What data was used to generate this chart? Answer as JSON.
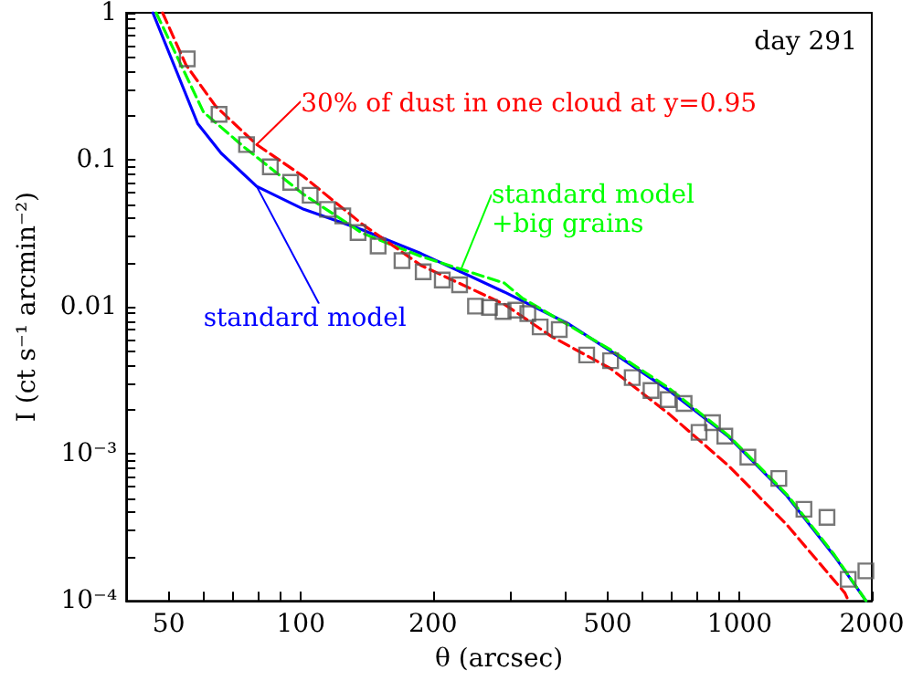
{
  "chart_data": {
    "type": "line",
    "xlabel": "θ (arcsec)",
    "ylabel": "I (ct s⁻¹ arcmin⁻²)",
    "log": "xy",
    "grid": false,
    "legend": false,
    "xlim": [
      40,
      2000
    ],
    "xticks": [
      50,
      100,
      200,
      500,
      1000,
      2000
    ],
    "ylim": [
      0.0001,
      1
    ],
    "yticks": [
      {
        "value": 0.0001,
        "label": "10⁻⁴"
      },
      {
        "value": 0.001,
        "label": "10⁻³"
      },
      0.01,
      0.1,
      1
    ],
    "annotations": [
      "day 291"
    ],
    "series": [
      {
        "type": "scatter",
        "marker": "square",
        "color": "#555555",
        "x": [
          55.1,
          65.1,
          75.2,
          85.2,
          94.8,
          105,
          115,
          124.6,
          135,
          150,
          170,
          190,
          210,
          230,
          250,
          269,
          289,
          309,
          329,
          351,
          388,
          448,
          508,
          569,
          628,
          687,
          747,
          808,
          867,
          925,
          1044,
          1228,
          1401,
          1581,
          1767,
          1939
        ],
        "values": [
          0.486,
          0.204,
          0.127,
          0.0895,
          0.0703,
          0.0574,
          0.046,
          0.0415,
          0.032,
          0.0259,
          0.0206,
          0.0173,
          0.0152,
          0.0141,
          0.0101,
          0.0099,
          0.0093,
          0.0095,
          0.009,
          0.0073,
          0.007,
          0.0047,
          0.0043,
          0.0033,
          0.0027,
          0.00234,
          0.0022,
          0.0014,
          0.00163,
          0.00132,
          0.00095,
          0.00068,
          0.00042,
          0.00037,
          0.00014,
          0.00016
        ]
      },
      {
        "name": "standard model",
        "color": "#0000ff",
        "line_style": "solid",
        "marker": "none",
        "x": [
          46,
          58.2,
          65.8,
          79.3,
          101.6,
          138,
          188,
          291,
          409,
          508,
          690,
          943,
          1280,
          1641,
          1940
        ],
        "values": [
          1,
          0.176,
          0.111,
          0.066,
          0.046,
          0.0334,
          0.023,
          0.0126,
          0.0076,
          0.005,
          0.0027,
          0.00131,
          0.00052,
          0.000203,
          0.0001
        ]
      },
      {
        "name": "standard model +big grains",
        "color": "#00ff00",
        "line_style": "dashed",
        "marker": "none",
        "x": [
          46.8,
          60,
          74.5,
          101.6,
          138,
          188,
          291,
          319,
          508,
          690,
          943,
          1280,
          1641,
          1940
        ],
        "values": [
          1,
          0.211,
          0.121,
          0.058,
          0.0317,
          0.022,
          0.0145,
          0.0115,
          0.0051,
          0.0028,
          0.00133,
          0.00053,
          0.000207,
          0.0001
        ]
      },
      {
        "name": "30% of dust in one cloud at y=0.95",
        "color": "#ff0000",
        "line_style": "dashed",
        "marker": "none",
        "x": [
          48.4,
          54.7,
          63.9,
          79.3,
          101.6,
          138,
          188,
          291,
          372,
          508,
          690,
          943,
          1280,
          1737,
          1770
        ],
        "values": [
          1,
          0.443,
          0.232,
          0.127,
          0.0766,
          0.0365,
          0.0191,
          0.0104,
          0.0063,
          0.0038,
          0.00187,
          0.00083,
          0.00033,
          0.000113,
          0.0001
        ]
      }
    ]
  }
}
